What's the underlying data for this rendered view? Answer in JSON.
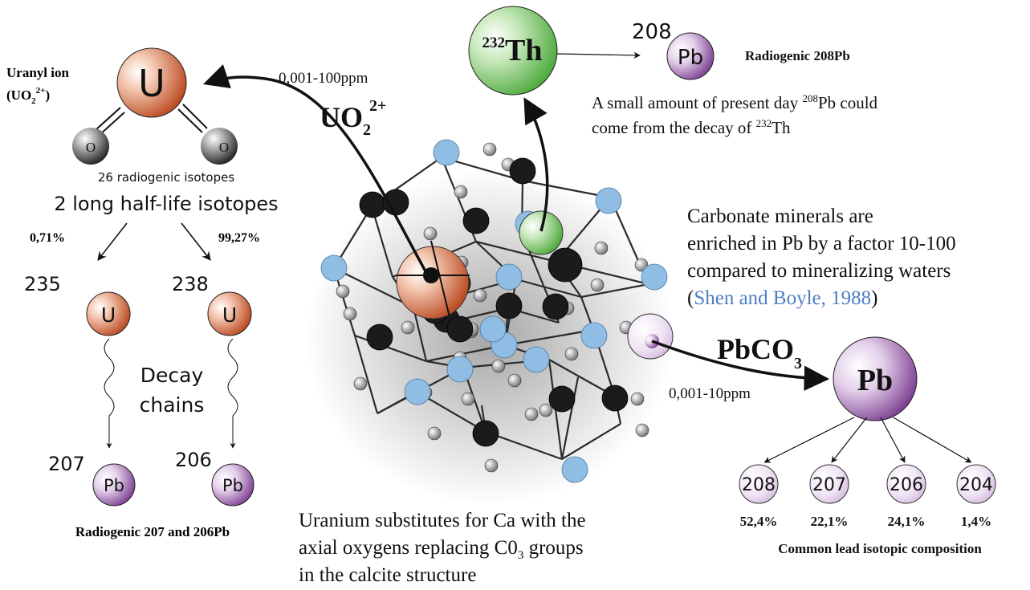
{
  "uranyl": {
    "title": "Uranyl ion",
    "formula_open": "(UO",
    "formula_sub": "2",
    "formula_sup": "2+",
    "formula_close": ")",
    "center": "U",
    "oxygen": "O",
    "isotopes_count": "26 radiogenic isotopes",
    "long_half_life": "2 long half-life isotopes"
  },
  "branches": {
    "left_pct": "0,71%",
    "right_pct": "99,27%",
    "u235_mass": "235",
    "u238_mass": "238",
    "u_symbol": "U",
    "decay_line1": "Decay",
    "decay_line2": "chains",
    "pb207_mass": "207",
    "pb206_mass": "206",
    "pb_symbol": "Pb",
    "radiogenic_caption": "Radiogenic 207 and 206Pb"
  },
  "uo2_arrow": {
    "concentration": "0,001-100ppm",
    "label_main": "UO",
    "label_sub": "2",
    "label_sup": "2+"
  },
  "thorium": {
    "mass": "232",
    "symbol": "Th",
    "pb_mass": "208",
    "pb_symbol": "Pb",
    "radiogenic_label": "Radiogenic 208Pb",
    "note_line1_pre": "A small amount of present day ",
    "note_line1_sup": "208",
    "note_line1_post": "Pb could",
    "note_line2_pre": "come from the decay of ",
    "note_line2_sup": "232",
    "note_line2_post": "Th"
  },
  "carbonate": {
    "line1": "Carbonate minerals are",
    "line2": "enriched in Pb by a factor 10-100",
    "line3": "compared to mineralizing waters",
    "paren_open": "(",
    "citation": "Shen and Boyle, 1988",
    "paren_close": ")"
  },
  "pbco3_arrow": {
    "label_main": "PbCO",
    "label_sub": "3",
    "concentration": "0,001-10ppm"
  },
  "common_lead": {
    "center": "Pb",
    "isotopes": [
      {
        "mass": "208",
        "pct": "52,4%"
      },
      {
        "mass": "207",
        "pct": "22,1%"
      },
      {
        "mass": "206",
        "pct": "24,1%"
      },
      {
        "mass": "204",
        "pct": "1,4%"
      }
    ],
    "caption": "Common lead isotopic composition"
  },
  "structure_caption": {
    "line1": "Uranium substitutes for Ca with the",
    "line2_pre": "axial oxygens replacing C0",
    "line2_sub": "3",
    "line2_post": " groups",
    "line3": "in the calcite structure"
  },
  "colors": {
    "uranium": "#c7572e",
    "thorium": "#5cb84a",
    "lead": "#8e4ea0",
    "carbon_blue": "#8fbde3",
    "calcium_black": "#1a1a1a",
    "citation_blue": "#4d7fc4"
  }
}
